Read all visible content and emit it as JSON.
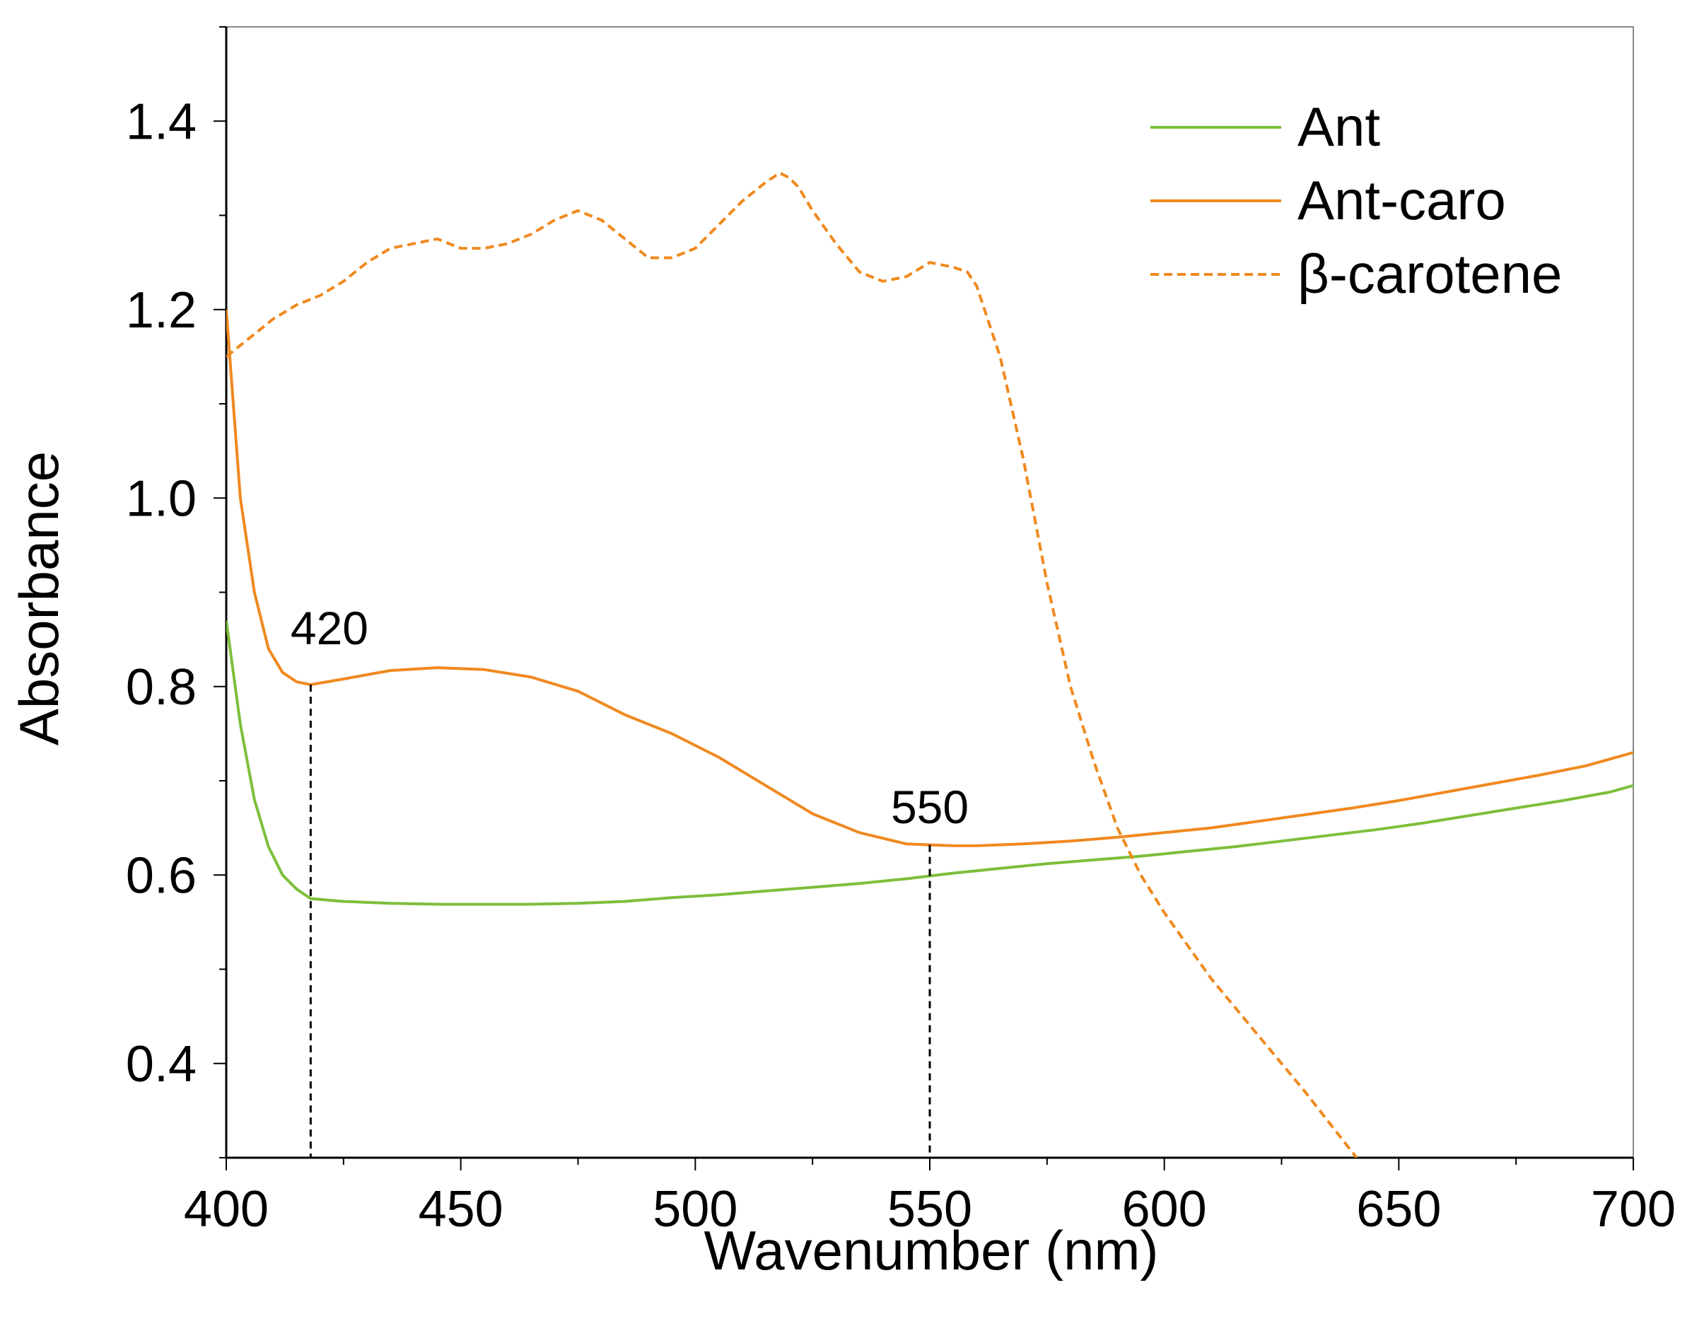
{
  "chart_data": {
    "type": "line",
    "title": "",
    "xlabel": "Wavenumber (nm)",
    "ylabel": "Absorbance",
    "xlim": [
      400,
      700
    ],
    "ylim": [
      0.3,
      1.5
    ],
    "x_ticks": [
      400,
      450,
      500,
      550,
      600,
      650,
      700
    ],
    "y_ticks": [
      0.4,
      0.6,
      0.8,
      1.0,
      1.2,
      1.4
    ],
    "x_tick_labels": [
      "400",
      "450",
      "500",
      "550",
      "600",
      "650",
      "700"
    ],
    "y_tick_labels": [
      "0.4",
      "0.6",
      "0.8",
      "1.0",
      "1.2",
      "1.4"
    ],
    "grid": false,
    "legend_position": "top-right",
    "series": [
      {
        "name": "Ant",
        "color": "#7cbf3a",
        "style": "solid",
        "x": [
          400,
          403,
          406,
          409,
          412,
          415,
          418,
          425,
          435,
          445,
          455,
          465,
          475,
          485,
          495,
          505,
          515,
          525,
          535,
          545,
          555,
          565,
          575,
          585,
          595,
          605,
          615,
          625,
          635,
          645,
          655,
          665,
          675,
          685,
          695,
          700
        ],
        "y": [
          0.87,
          0.76,
          0.68,
          0.63,
          0.6,
          0.585,
          0.575,
          0.572,
          0.57,
          0.569,
          0.569,
          0.569,
          0.57,
          0.572,
          0.576,
          0.579,
          0.583,
          0.587,
          0.591,
          0.596,
          0.602,
          0.607,
          0.612,
          0.616,
          0.62,
          0.625,
          0.63,
          0.636,
          0.642,
          0.648,
          0.655,
          0.663,
          0.671,
          0.679,
          0.688,
          0.695
        ]
      },
      {
        "name": "Ant-caro",
        "color": "#f0891f",
        "style": "solid",
        "x": [
          400,
          403,
          406,
          409,
          412,
          415,
          418,
          425,
          435,
          445,
          455,
          465,
          475,
          485,
          495,
          505,
          515,
          525,
          535,
          545,
          550,
          555,
          560,
          570,
          580,
          590,
          600,
          610,
          620,
          630,
          640,
          650,
          660,
          670,
          680,
          690,
          700
        ],
        "y": [
          1.2,
          1.0,
          0.9,
          0.84,
          0.815,
          0.805,
          0.802,
          0.808,
          0.817,
          0.82,
          0.818,
          0.81,
          0.795,
          0.77,
          0.75,
          0.725,
          0.695,
          0.665,
          0.645,
          0.633,
          0.632,
          0.631,
          0.631,
          0.633,
          0.636,
          0.64,
          0.645,
          0.65,
          0.657,
          0.664,
          0.671,
          0.679,
          0.688,
          0.697,
          0.706,
          0.716,
          0.73
        ]
      },
      {
        "name": "β-carotene",
        "color": "#f0891f",
        "style": "dashed",
        "x": [
          400,
          405,
          410,
          415,
          420,
          425,
          430,
          435,
          440,
          445,
          450,
          455,
          460,
          465,
          470,
          475,
          480,
          485,
          490,
          495,
          500,
          505,
          510,
          515,
          518,
          520,
          522,
          525,
          530,
          535,
          540,
          545,
          550,
          555,
          558,
          560,
          565,
          570,
          575,
          580,
          585,
          590,
          595,
          600,
          610,
          620,
          630,
          641
        ],
        "y": [
          1.15,
          1.17,
          1.19,
          1.205,
          1.215,
          1.23,
          1.25,
          1.265,
          1.27,
          1.275,
          1.265,
          1.265,
          1.27,
          1.28,
          1.295,
          1.305,
          1.295,
          1.275,
          1.255,
          1.255,
          1.265,
          1.29,
          1.315,
          1.335,
          1.345,
          1.34,
          1.33,
          1.305,
          1.27,
          1.24,
          1.23,
          1.235,
          1.25,
          1.245,
          1.24,
          1.225,
          1.15,
          1.04,
          0.91,
          0.8,
          0.72,
          0.65,
          0.6,
          0.56,
          0.49,
          0.43,
          0.37,
          0.3
        ]
      }
    ],
    "annotations": [
      {
        "text": "420",
        "x": 418,
        "y": 0.802,
        "label_x": 422,
        "label_y": 0.845
      },
      {
        "text": "550",
        "x": 550,
        "y": 0.632,
        "label_x": 550,
        "label_y": 0.655
      }
    ]
  }
}
